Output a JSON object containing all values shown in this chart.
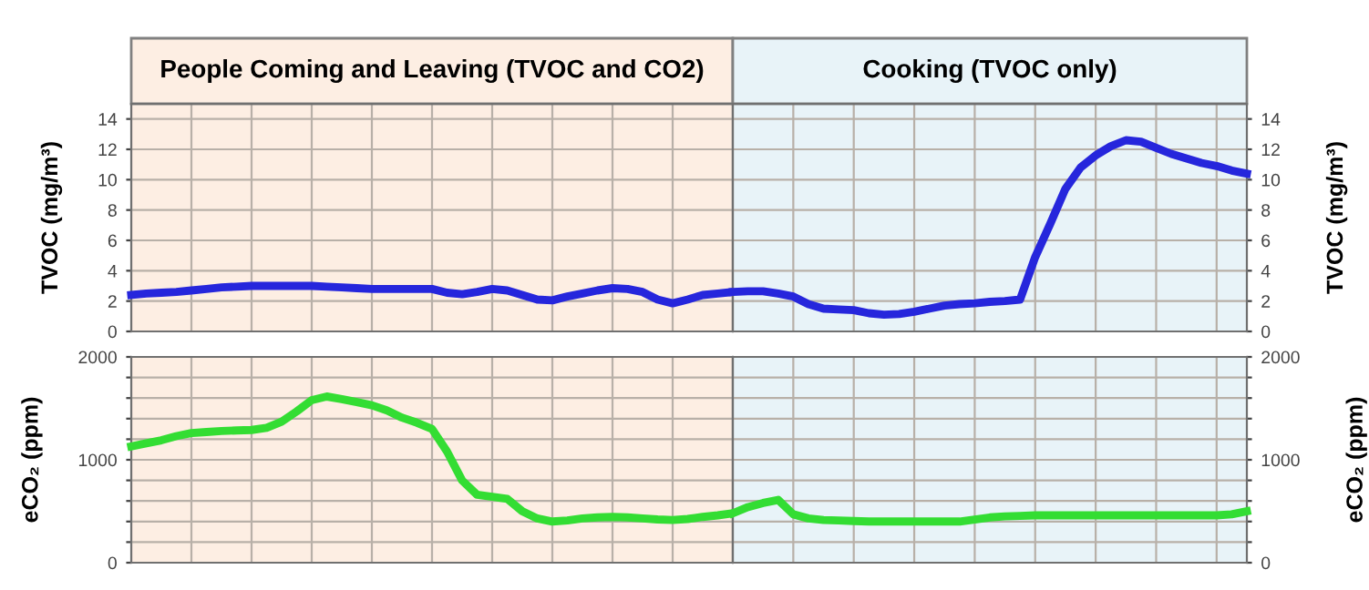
{
  "chart_data": [
    {
      "type": "line",
      "title": "People Coming and Leaving (TVOC and CO2)",
      "ylabel": "TVOC (mg/m³)",
      "categories": [
        null,
        null,
        null,
        null,
        null,
        null,
        null,
        null,
        null,
        null,
        null,
        null,
        null,
        null,
        null,
        null,
        null,
        null,
        null,
        null,
        null,
        null,
        null,
        null,
        null,
        null,
        null,
        null,
        null,
        null,
        null,
        null,
        null,
        null,
        null,
        null,
        null,
        null,
        null,
        null,
        null
      ],
      "ylim": [
        0,
        15
      ],
      "yticks": [
        0,
        2,
        4,
        6,
        8,
        10,
        12,
        14
      ],
      "grid": true,
      "line_style": "solid",
      "series": [
        {
          "color": "#2626dc",
          "values": [
            2.4,
            2.5,
            2.55,
            2.6,
            2.7,
            2.8,
            2.9,
            2.95,
            3.0,
            3.0,
            3.0,
            3.0,
            3.0,
            2.95,
            2.9,
            2.85,
            2.8,
            2.8,
            2.8,
            2.8,
            2.8,
            2.55,
            2.45,
            2.6,
            2.8,
            2.7,
            2.4,
            2.1,
            2.05,
            2.3,
            2.5,
            2.7,
            2.85,
            2.8,
            2.6,
            2.1,
            1.85,
            2.1,
            2.4,
            2.5,
            2.6
          ]
        }
      ]
    },
    {
      "type": "line",
      "title": "Cooking (TVOC only)",
      "ylabel": "TVOC (mg/m³)",
      "categories": [
        null,
        null,
        null,
        null,
        null,
        null,
        null,
        null,
        null,
        null,
        null,
        null,
        null,
        null,
        null,
        null,
        null,
        null,
        null,
        null,
        null,
        null,
        null,
        null,
        null,
        null,
        null,
        null,
        null,
        null,
        null,
        null,
        null,
        null,
        null
      ],
      "ylim": [
        0,
        15
      ],
      "yticks": [
        0,
        2,
        4,
        6,
        8,
        10,
        12,
        14
      ],
      "grid": true,
      "line_style": "solid",
      "series": [
        {
          "color": "#2626dc",
          "values": [
            2.6,
            2.65,
            2.65,
            2.5,
            2.3,
            1.8,
            1.5,
            1.45,
            1.4,
            1.2,
            1.1,
            1.15,
            1.3,
            1.5,
            1.7,
            1.8,
            1.85,
            1.95,
            2.0,
            2.1,
            4.9,
            7.1,
            9.4,
            10.8,
            11.6,
            12.2,
            12.6,
            12.5,
            12.1,
            11.7,
            11.4,
            11.1,
            10.9,
            10.6,
            10.4
          ]
        }
      ]
    },
    {
      "type": "line",
      "ylabel": "eCO₂ (ppm)",
      "categories": [
        null,
        null,
        null,
        null,
        null,
        null,
        null,
        null,
        null,
        null,
        null,
        null,
        null,
        null,
        null,
        null,
        null,
        null,
        null,
        null,
        null,
        null,
        null,
        null,
        null,
        null,
        null,
        null,
        null,
        null,
        null,
        null,
        null,
        null,
        null,
        null,
        null,
        null,
        null,
        null,
        null
      ],
      "ylim": [
        0,
        2000
      ],
      "yticks": [
        0,
        {
          "value": 200,
          "label": null
        },
        {
          "value": 400,
          "label": null
        },
        {
          "value": 600,
          "label": null
        },
        {
          "value": 800,
          "label": null
        },
        1000,
        {
          "value": 1200,
          "label": null
        },
        {
          "value": 1400,
          "label": null
        },
        {
          "value": 1600,
          "label": null
        },
        {
          "value": 1800,
          "label": null
        },
        2000
      ],
      "grid": true,
      "line_style": "solid",
      "series": [
        {
          "color": "#33dd33",
          "values": [
            1130,
            1160,
            1190,
            1230,
            1260,
            1270,
            1280,
            1285,
            1290,
            1310,
            1370,
            1470,
            1580,
            1615,
            1590,
            1560,
            1530,
            1480,
            1410,
            1360,
            1300,
            1080,
            800,
            660,
            640,
            620,
            500,
            430,
            400,
            410,
            430,
            440,
            445,
            440,
            430,
            420,
            415,
            425,
            445,
            460,
            480
          ]
        }
      ]
    },
    {
      "type": "line",
      "ylabel": "eCO₂ (ppm)",
      "categories": [
        null,
        null,
        null,
        null,
        null,
        null,
        null,
        null,
        null,
        null,
        null,
        null,
        null,
        null,
        null,
        null,
        null,
        null,
        null,
        null,
        null,
        null,
        null,
        null,
        null,
        null,
        null,
        null,
        null,
        null,
        null,
        null,
        null,
        null,
        null
      ],
      "ylim": [
        0,
        2000
      ],
      "yticks": [
        0,
        {
          "value": 200,
          "label": null
        },
        {
          "value": 400,
          "label": null
        },
        {
          "value": 600,
          "label": null
        },
        {
          "value": 800,
          "label": null
        },
        1000,
        {
          "value": 1200,
          "label": null
        },
        {
          "value": 1400,
          "label": null
        },
        {
          "value": 1600,
          "label": null
        },
        {
          "value": 1800,
          "label": null
        },
        2000
      ],
      "grid": true,
      "line_style": "solid",
      "series": [
        {
          "color": "#33dd33",
          "values": [
            480,
            540,
            580,
            610,
            470,
            430,
            415,
            410,
            405,
            400,
            400,
            400,
            400,
            400,
            400,
            400,
            420,
            440,
            450,
            455,
            460,
            460,
            460,
            460,
            460,
            460,
            460,
            460,
            460,
            460,
            460,
            460,
            460,
            470,
            500
          ]
        }
      ]
    }
  ]
}
